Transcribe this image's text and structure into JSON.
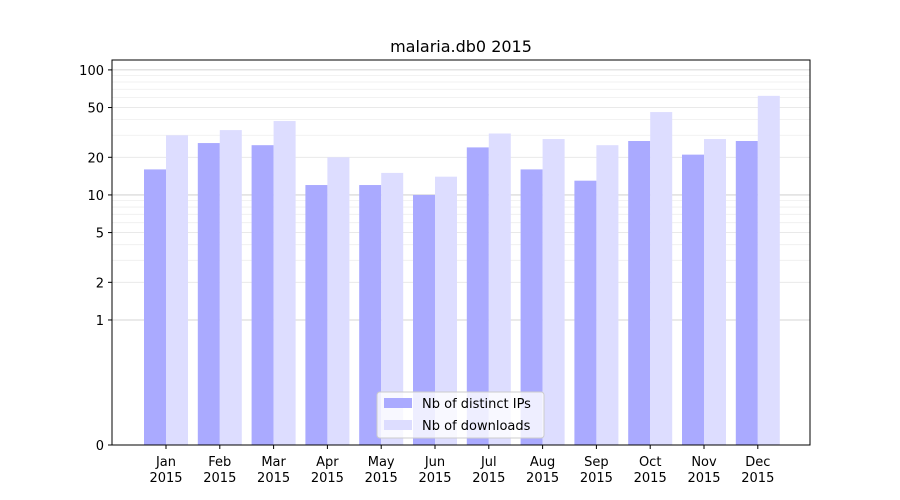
{
  "chart_data": {
    "type": "bar",
    "title": "malaria.db0 2015",
    "xlabel": "",
    "ylabel": "",
    "y_scale": "symlog",
    "ylim": [
      0,
      120
    ],
    "yticks": [
      0,
      1,
      2,
      5,
      10,
      20,
      50,
      100
    ],
    "grid": true,
    "legend_position": "bottom-center",
    "categories": [
      [
        "Jan",
        "2015"
      ],
      [
        "Feb",
        "2015"
      ],
      [
        "Mar",
        "2015"
      ],
      [
        "Apr",
        "2015"
      ],
      [
        "May",
        "2015"
      ],
      [
        "Jun",
        "2015"
      ],
      [
        "Jul",
        "2015"
      ],
      [
        "Aug",
        "2015"
      ],
      [
        "Sep",
        "2015"
      ],
      [
        "Oct",
        "2015"
      ],
      [
        "Nov",
        "2015"
      ],
      [
        "Dec",
        "2015"
      ]
    ],
    "series": [
      {
        "name": "Nb of distinct IPs",
        "color": "#aaaaff",
        "values": [
          16,
          26,
          25,
          12,
          12,
          10,
          24,
          16,
          13,
          27,
          21,
          27
        ]
      },
      {
        "name": "Nb of downloads",
        "color": "#ddddff",
        "values": [
          30,
          33,
          39,
          20,
          15,
          14,
          31,
          28,
          25,
          46,
          28,
          62
        ]
      }
    ]
  }
}
